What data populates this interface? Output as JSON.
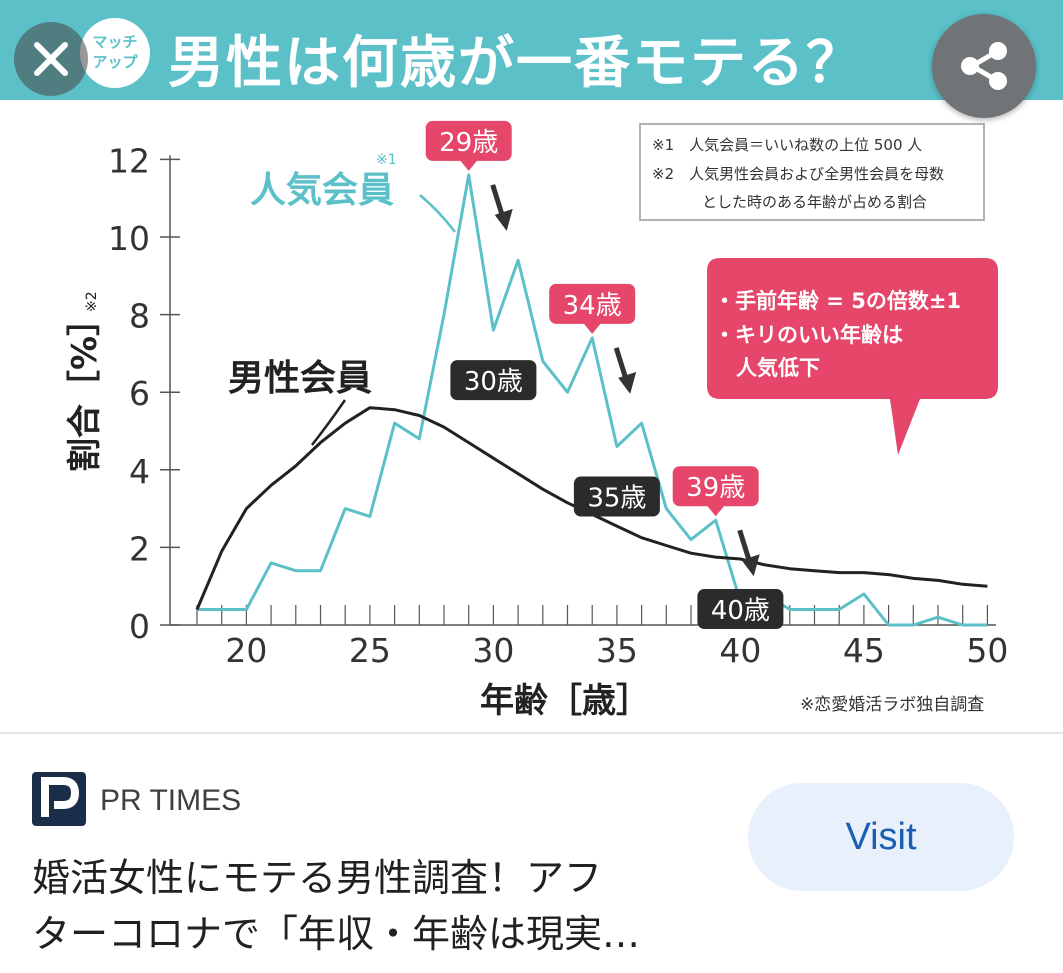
{
  "banner": {
    "title": "男性は何歳が一番モテる？",
    "logo_text_line1": "マッチ",
    "logo_text_line2": "アップ",
    "close_icon": "close-icon",
    "share_icon": "share-icon",
    "background": "#5bc0c8"
  },
  "colors": {
    "popular": "#5bc0c8",
    "male": "#222222",
    "peak_label": "#e5466a",
    "dip_label": "#2b2b2b"
  },
  "chart_data": {
    "type": "line",
    "xlabel": "年齢［歳］",
    "ylabel": "割合［%］",
    "ylabel_note": "※2",
    "xlim": [
      18,
      50
    ],
    "ylim": [
      0,
      12
    ],
    "xticks": [
      20,
      25,
      30,
      35,
      40,
      45,
      50
    ],
    "yticks": [
      0,
      2,
      4,
      6,
      8,
      10,
      12
    ],
    "x": [
      18,
      19,
      20,
      21,
      22,
      23,
      24,
      25,
      26,
      27,
      28,
      29,
      30,
      31,
      32,
      33,
      34,
      35,
      36,
      37,
      38,
      39,
      40,
      41,
      42,
      43,
      44,
      45,
      46,
      47,
      48,
      49,
      50
    ],
    "series": [
      {
        "name": "人気会員",
        "name_note": "※1",
        "values": [
          0.4,
          0.4,
          0.4,
          1.6,
          1.4,
          1.4,
          3.0,
          2.8,
          5.2,
          4.8,
          8.0,
          11.6,
          7.6,
          9.4,
          6.8,
          6.0,
          7.4,
          4.6,
          5.2,
          3.0,
          2.2,
          2.7,
          0.6,
          0.8,
          0.4,
          0.4,
          0.4,
          0.8,
          0.0,
          0.0,
          0.2,
          0.0,
          0.0
        ]
      },
      {
        "name": "男性会員",
        "values": [
          0.4,
          1.9,
          3.0,
          3.6,
          4.1,
          4.7,
          5.2,
          5.6,
          5.55,
          5.4,
          5.1,
          4.7,
          4.3,
          3.9,
          3.5,
          3.15,
          2.85,
          2.55,
          2.25,
          2.05,
          1.85,
          1.75,
          1.7,
          1.55,
          1.45,
          1.4,
          1.35,
          1.35,
          1.3,
          1.2,
          1.15,
          1.05,
          1.0
        ]
      }
    ],
    "peak_labels": [
      {
        "text": "29歳",
        "x": 29,
        "y": 11.6
      },
      {
        "text": "34歳",
        "x": 34,
        "y": 7.4
      },
      {
        "text": "39歳",
        "x": 39,
        "y": 2.7
      }
    ],
    "dip_labels": [
      {
        "text": "30歳",
        "x": 30,
        "y": 7.6
      },
      {
        "text": "35歳",
        "x": 35,
        "y": 4.6
      },
      {
        "text": "40歳",
        "x": 40,
        "y": 1.7
      }
    ],
    "notes": [
      "※1　人気会員＝いいね数の上位 500 人",
      "※2　人気男性会員および全男性会員を母数",
      "とした時のある年齢が占める割合"
    ],
    "callout": [
      "・手前年齢 = 5の倍数±1",
      "・キリのいい年齢は",
      "人気低下"
    ],
    "source_note": "※恋愛婚活ラボ独自調査"
  },
  "result": {
    "source_icon": "pr-times-logo-icon",
    "source_name": "PR TIMES",
    "visit_label": "Visit",
    "caption_line1": "婚活女性にモテる男性調査！アフ",
    "caption_line2": "ターコロナで「年収・年齢は現実…"
  }
}
